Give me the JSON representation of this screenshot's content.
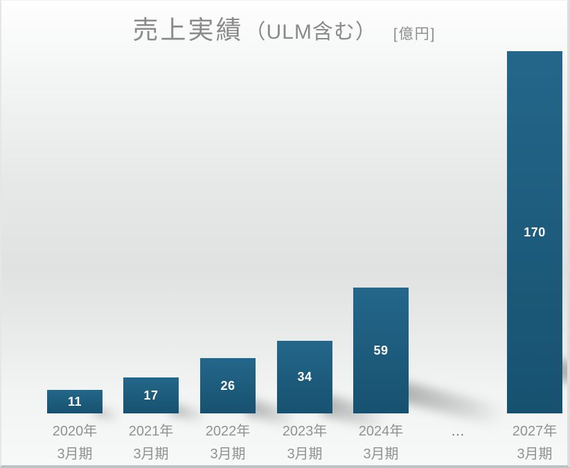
{
  "title": {
    "main": "売上実績",
    "paren": "（ULM含む）",
    "unit": "[億円]"
  },
  "chart_data": {
    "type": "bar",
    "title": "売上実績（ULM含む）",
    "unit_label": "[億円]",
    "unit": "億円",
    "categories": [
      "2020年3月期",
      "2021年3月期",
      "2022年3月期",
      "2023年3月期",
      "2024年3月期",
      "…",
      "2027年3月期"
    ],
    "category_lines": [
      [
        "2020年",
        "3月期"
      ],
      [
        "2021年",
        "3月期"
      ],
      [
        "2022年",
        "3月期"
      ],
      [
        "2023年",
        "3月期"
      ],
      [
        "2024年",
        "3月期"
      ],
      [
        "…"
      ],
      [
        "2027年",
        "3月期"
      ]
    ],
    "values": [
      11,
      17,
      26,
      34,
      59,
      null,
      170
    ],
    "data_labels": [
      "11",
      "17",
      "26",
      "34",
      "59",
      "",
      "170"
    ],
    "ylim": [
      0,
      175
    ],
    "grid": false,
    "legend": false,
    "axis_lines": false,
    "bar_color": "#1d5c7c",
    "bar_gradient": [
      "#24678a",
      "#1e5d7e",
      "#175170"
    ],
    "value_label_color": "#ffffff",
    "category_label_color": "#8f9292",
    "title_color": "#8a8a8a",
    "background_style": "vertical gray gradient with soft bar drop-shadows to lower right"
  }
}
